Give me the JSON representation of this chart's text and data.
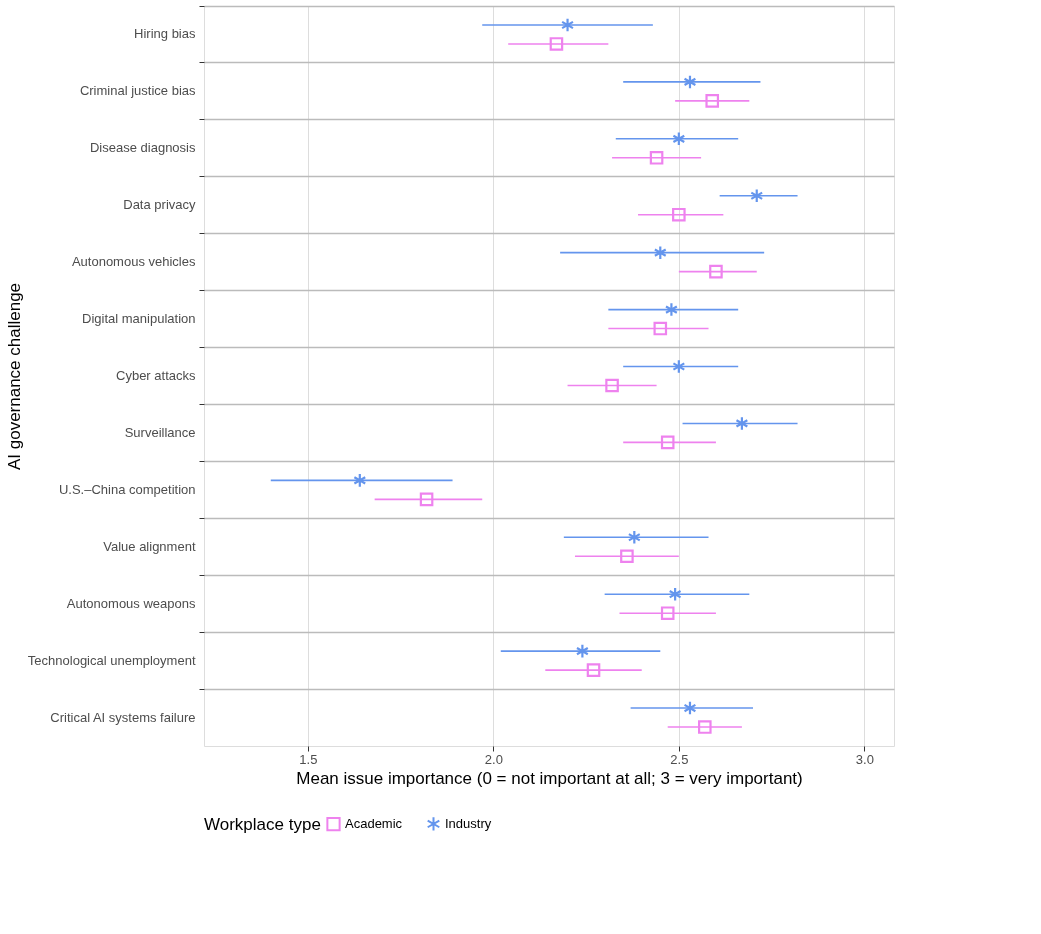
{
  "chart_data": {
    "type": "scatter",
    "orientation": "horizontal",
    "xlabel": "Mean issue importance (0 = not important at all; 3 = very important)",
    "ylabel": "AI governance challenge",
    "legend_title": "Workplace type",
    "categories": [
      "Hiring bias",
      "Criminal justice bias",
      "Disease diagnosis",
      "Data privacy",
      "Autonomous vehicles",
      "Digital manipulation",
      "Cyber attacks",
      "Surveillance",
      "U.S.–China competition",
      "Value alignment",
      "Autonomous weapons",
      "Technological unemployment",
      "Critical AI systems failure"
    ],
    "series": [
      {
        "name": "Academic",
        "color": "#ee82ee",
        "marker": "square",
        "values": [
          2.17,
          2.59,
          2.44,
          2.5,
          2.6,
          2.45,
          2.32,
          2.47,
          1.82,
          2.36,
          2.47,
          2.27,
          2.57
        ],
        "errors": [
          [
            2.04,
            2.31
          ],
          [
            2.49,
            2.69
          ],
          [
            2.32,
            2.56
          ],
          [
            2.39,
            2.62
          ],
          [
            2.5,
            2.71
          ],
          [
            2.31,
            2.58
          ],
          [
            2.2,
            2.44
          ],
          [
            2.35,
            2.6
          ],
          [
            1.68,
            1.97
          ],
          [
            2.22,
            2.5
          ],
          [
            2.34,
            2.6
          ],
          [
            2.14,
            2.4
          ],
          [
            2.47,
            2.67
          ]
        ]
      },
      {
        "name": "Industry",
        "color": "#6495ed",
        "marker": "cross",
        "values": [
          2.2,
          2.53,
          2.5,
          2.71,
          2.45,
          2.48,
          2.5,
          2.67,
          1.64,
          2.38,
          2.49,
          2.24,
          2.53
        ],
        "errors": [
          [
            1.97,
            2.43
          ],
          [
            2.35,
            2.72
          ],
          [
            2.33,
            2.66
          ],
          [
            2.61,
            2.82
          ],
          [
            2.18,
            2.73
          ],
          [
            2.31,
            2.66
          ],
          [
            2.35,
            2.66
          ],
          [
            2.51,
            2.82
          ],
          [
            1.4,
            1.89
          ],
          [
            2.19,
            2.58
          ],
          [
            2.3,
            2.69
          ],
          [
            2.02,
            2.45
          ],
          [
            2.37,
            2.7
          ]
        ]
      }
    ],
    "xlim": [
      1.22,
      3.08
    ],
    "xticks": [
      1.5,
      {
        "value": 2,
        "label": "2.0"
      },
      2.5,
      {
        "value": 3,
        "label": "3.0"
      }
    ],
    "grid": true,
    "legend": "bottom"
  }
}
